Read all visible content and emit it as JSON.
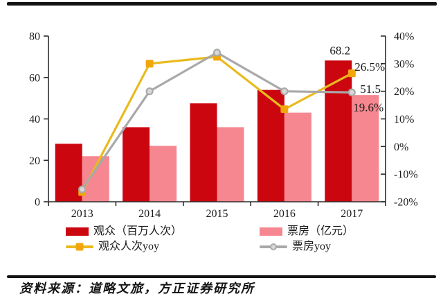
{
  "figure": {
    "source_note": "资料来源：道略文旅，方正证券研究所"
  },
  "colors": {
    "audience_bar": "#CB060F",
    "boxoffice_bar": "#F6868F",
    "audience_yoy_line": "#E9BA1E",
    "audience_yoy_marker": "#F3A60B",
    "boxoffice_yoy_line": "#A9A9A9",
    "boxoffice_yoy_marker_fill": "#D8D8D8",
    "axis": "#2B2B2B",
    "text": "#1A1A1A"
  },
  "chart_data": {
    "type": "combo-bar-line",
    "categories": [
      "2013",
      "2014",
      "2015",
      "2016",
      "2017"
    ],
    "series": [
      {
        "id": "audience",
        "name": "观众（百万人次）",
        "type": "bar",
        "axis": "left",
        "color_key": "audience_bar",
        "values": [
          28,
          36,
          47.5,
          54,
          68.2
        ]
      },
      {
        "id": "boxoffice",
        "name": "票房（亿元）",
        "type": "bar",
        "axis": "left",
        "color_key": "boxoffice_bar",
        "values": [
          22,
          27,
          36,
          43,
          51.5
        ]
      },
      {
        "id": "audience_yoy",
        "name": "观众人次yoy",
        "type": "line",
        "axis": "right",
        "marker": "square",
        "line_color_key": "audience_yoy_line",
        "marker_color_key": "audience_yoy_marker",
        "values": [
          -16.5,
          30,
          32.5,
          13.5,
          26.5
        ]
      },
      {
        "id": "boxoffice_yoy",
        "name": "票房yoy",
        "type": "line",
        "axis": "right",
        "marker": "circle",
        "line_color_key": "boxoffice_yoy_line",
        "marker_color_key": "boxoffice_yoy_line",
        "values": [
          -15.5,
          20,
          34,
          20,
          19.6
        ]
      }
    ],
    "left_axis": {
      "min": 0,
      "max": 80,
      "tick_step": 20,
      "tick_labels": [
        "0",
        "20",
        "40",
        "60",
        "80"
      ]
    },
    "right_axis": {
      "min": -20,
      "max": 40,
      "tick_step": 10,
      "tick_labels": [
        "-20%",
        "-10%",
        "0%",
        "10%",
        "20%",
        "30%",
        "40%"
      ]
    },
    "annotations": [
      {
        "text": "68.2",
        "target": "audience",
        "year": "2017"
      },
      {
        "text": "26.5%",
        "target": "audience_yoy",
        "year": "2017"
      },
      {
        "text": "51.5",
        "target": "boxoffice",
        "year": "2017"
      },
      {
        "text": "19.6%",
        "target": "boxoffice_yoy",
        "year": "2017"
      }
    ],
    "legend": [
      {
        "series": "audience",
        "label": "观众（百万人次）",
        "swatch": "bar",
        "color_key": "audience_bar"
      },
      {
        "series": "boxoffice",
        "label": "票房（亿元）",
        "swatch": "bar",
        "color_key": "boxoffice_bar"
      },
      {
        "series": "audience_yoy",
        "label": "观众人次yoy",
        "swatch": "line-square",
        "line_color_key": "audience_yoy_line",
        "marker_color_key": "audience_yoy_marker"
      },
      {
        "series": "boxoffice_yoy",
        "label": "票房yoy",
        "swatch": "line-circle",
        "line_color_key": "boxoffice_yoy_line",
        "marker_color_key": "boxoffice_yoy_line"
      }
    ],
    "layout_hints": {
      "grid": false,
      "legend_position": "bottom",
      "bars_on_left_axis": true,
      "lines_on_right_axis": true
    }
  }
}
